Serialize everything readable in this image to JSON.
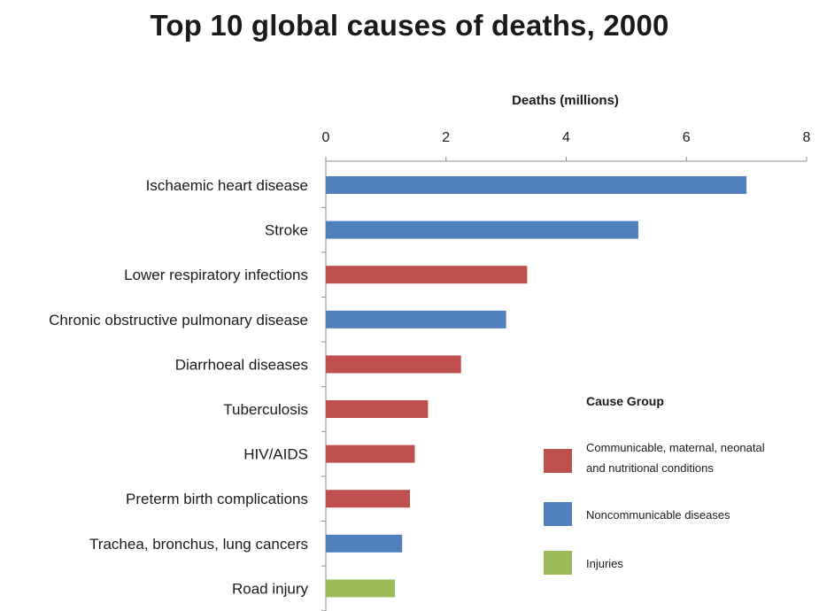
{
  "chart_data": {
    "type": "bar",
    "orientation": "horizontal",
    "title": "Top 10 global causes of deaths, 2000",
    "xlabel": "Deaths (millions)",
    "xlim": [
      0,
      8
    ],
    "xticks": [
      0,
      2,
      4,
      6,
      8
    ],
    "x_axis_position": "top",
    "grid": false,
    "legend_title": "Cause Group",
    "legend_position": "right",
    "groups": [
      {
        "name": "Communicable, maternal, neonatal and nutritional conditions",
        "lines": [
          "Communicable, maternal, neonatal",
          "and nutritional conditions"
        ],
        "color": "#c0504d"
      },
      {
        "name": "Noncommunicable diseases",
        "lines": [
          "Noncommunicable diseases"
        ],
        "color": "#4f81bd"
      },
      {
        "name": "Injuries",
        "lines": [
          "Injuries"
        ],
        "color": "#9bbb59"
      }
    ],
    "categories": [
      "Ischaemic heart disease",
      "Stroke",
      "Lower respiratory infections",
      "Chronic obstructive pulmonary disease",
      "Diarrhoeal diseases",
      "Tuberculosis",
      "HIV/AIDS",
      "Preterm birth complications",
      "Trachea, bronchus, lung cancers",
      "Road injury"
    ],
    "values": [
      7.0,
      5.2,
      3.35,
      3.0,
      2.25,
      1.7,
      1.48,
      1.4,
      1.27,
      1.15
    ],
    "category_group": [
      1,
      1,
      0,
      1,
      0,
      0,
      0,
      0,
      1,
      2
    ]
  }
}
